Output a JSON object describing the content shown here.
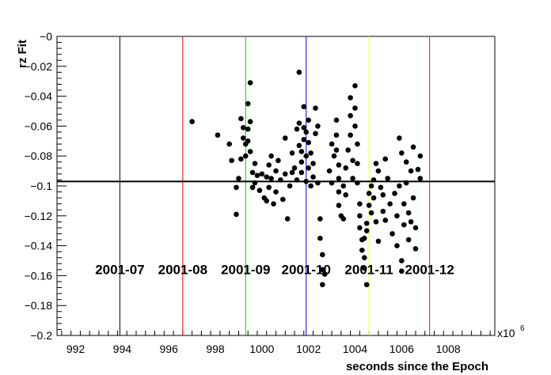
{
  "chart_data": {
    "type": "scatter",
    "xlabel": "seconds since the Epoch",
    "ylabel": "rz Fit",
    "x_multiplier_label": "x10",
    "x_multiplier_exponent": "6",
    "xlim": [
      991.2,
      1010.0
    ],
    "ylim": [
      -0.2,
      0.0
    ],
    "x_ticks": [
      992,
      994,
      996,
      998,
      1000,
      1002,
      1004,
      1006,
      1008
    ],
    "y_ticks": [
      0,
      -0.02,
      -0.04,
      -0.06,
      -0.08,
      -0.1,
      -0.12,
      -0.14,
      -0.16,
      -0.18,
      -0.2
    ],
    "x_tick_labels": [
      "992",
      "994",
      "996",
      "998",
      "1000",
      "1002",
      "1004",
      "1006",
      "1008"
    ],
    "y_tick_labels": [
      "−0",
      "−0.02",
      "−0.04",
      "−0.06",
      "−0.08",
      "−0.1",
      "−0.12",
      "−0.14",
      "−0.16",
      "−0.18",
      "−0.2"
    ],
    "reference_line": {
      "y": -0.097,
      "color": "#000000"
    },
    "month_markers": [
      {
        "x": 993.9,
        "label": "2001-07",
        "color": "#000000"
      },
      {
        "x": 996.6,
        "label": "2001-08",
        "color": "#ff0000"
      },
      {
        "x": 999.3,
        "label": "2001-09",
        "color": "#00cc00"
      },
      {
        "x": 1001.9,
        "label": "2001-10",
        "color": "#0000ff"
      },
      {
        "x": 1004.6,
        "label": "2001-11",
        "color": "#ffff00"
      },
      {
        "x": 1007.2,
        "label": "2001-12",
        "color": "#cc00cc"
      }
    ],
    "points": [
      [
        997.0,
        -0.057
      ],
      [
        998.1,
        -0.066
      ],
      [
        998.6,
        -0.072
      ],
      [
        998.7,
        -0.083
      ],
      [
        998.9,
        -0.101
      ],
      [
        998.9,
        -0.119
      ],
      [
        999.0,
        -0.095
      ],
      [
        999.1,
        -0.082
      ],
      [
        999.1,
        -0.055
      ],
      [
        999.2,
        -0.061
      ],
      [
        999.2,
        -0.068
      ],
      [
        999.3,
        -0.072
      ],
      [
        999.3,
        -0.08
      ],
      [
        999.4,
        -0.045
      ],
      [
        999.4,
        -0.062
      ],
      [
        999.4,
        -0.07
      ],
      [
        999.5,
        -0.031
      ],
      [
        999.5,
        -0.057
      ],
      [
        999.5,
        -0.077
      ],
      [
        999.6,
        -0.091
      ],
      [
        999.6,
        -0.101
      ],
      [
        999.7,
        -0.085
      ],
      [
        999.7,
        -0.098
      ],
      [
        999.8,
        -0.093
      ],
      [
        999.9,
        -0.103
      ],
      [
        1000.0,
        -0.092
      ],
      [
        1000.1,
        -0.108
      ],
      [
        1000.2,
        -0.094
      ],
      [
        1000.2,
        -0.11
      ],
      [
        1000.3,
        -0.086
      ],
      [
        1000.3,
        -0.101
      ],
      [
        1000.4,
        -0.08
      ],
      [
        1000.4,
        -0.095
      ],
      [
        1000.5,
        -0.112
      ],
      [
        1000.6,
        -0.09
      ],
      [
        1000.6,
        -0.104
      ],
      [
        1000.7,
        -0.083
      ],
      [
        1000.8,
        -0.096
      ],
      [
        1000.9,
        -0.109
      ],
      [
        1001.0,
        -0.068
      ],
      [
        1001.0,
        -0.092
      ],
      [
        1001.1,
        -0.122
      ],
      [
        1001.2,
        -0.1
      ],
      [
        1001.3,
        -0.078
      ],
      [
        1001.3,
        -0.091
      ],
      [
        1001.4,
        -0.088
      ],
      [
        1001.5,
        -0.096
      ],
      [
        1001.5,
        -0.062
      ],
      [
        1001.6,
        -0.024
      ],
      [
        1001.6,
        -0.058
      ],
      [
        1001.6,
        -0.073
      ],
      [
        1001.7,
        -0.077
      ],
      [
        1001.7,
        -0.084
      ],
      [
        1001.7,
        -0.091
      ],
      [
        1001.8,
        -0.047
      ],
      [
        1001.8,
        -0.061
      ],
      [
        1001.8,
        -0.069
      ],
      [
        1001.9,
        -0.064
      ],
      [
        1001.9,
        -0.08
      ],
      [
        1001.9,
        -0.097
      ],
      [
        1002.0,
        -0.056
      ],
      [
        1002.0,
        -0.071
      ],
      [
        1002.0,
        -0.088
      ],
      [
        1002.1,
        -0.078
      ],
      [
        1002.1,
        -0.1
      ],
      [
        1002.2,
        -0.085
      ],
      [
        1002.2,
        -0.094
      ],
      [
        1002.3,
        -0.048
      ],
      [
        1002.3,
        -0.065
      ],
      [
        1002.4,
        -0.06
      ],
      [
        1002.4,
        -0.098
      ],
      [
        1002.5,
        -0.122
      ],
      [
        1002.5,
        -0.135
      ],
      [
        1002.6,
        -0.146
      ],
      [
        1002.6,
        -0.156
      ],
      [
        1002.6,
        -0.166
      ],
      [
        1002.7,
        -0.159
      ],
      [
        1002.9,
        -0.09
      ],
      [
        1003.0,
        -0.072
      ],
      [
        1003.0,
        -0.098
      ],
      [
        1003.1,
        -0.08
      ],
      [
        1003.2,
        -0.056
      ],
      [
        1003.2,
        -0.066
      ],
      [
        1003.2,
        -0.076
      ],
      [
        1003.3,
        -0.086
      ],
      [
        1003.3,
        -0.095
      ],
      [
        1003.3,
        -0.104
      ],
      [
        1003.3,
        -0.113
      ],
      [
        1003.4,
        -0.12
      ],
      [
        1003.5,
        -0.1
      ],
      [
        1003.5,
        -0.122
      ],
      [
        1003.6,
        -0.088
      ],
      [
        1003.6,
        -0.106
      ],
      [
        1003.7,
        -0.076
      ],
      [
        1003.8,
        -0.041
      ],
      [
        1003.8,
        -0.053
      ],
      [
        1003.8,
        -0.066
      ],
      [
        1003.9,
        -0.083
      ],
      [
        1003.9,
        -0.095
      ],
      [
        1004.0,
        -0.033
      ],
      [
        1004.0,
        -0.048
      ],
      [
        1004.0,
        -0.06
      ],
      [
        1004.1,
        -0.072
      ],
      [
        1004.1,
        -0.085
      ],
      [
        1004.1,
        -0.098
      ],
      [
        1004.2,
        -0.112
      ],
      [
        1004.2,
        -0.12
      ],
      [
        1004.2,
        -0.128
      ],
      [
        1004.3,
        -0.136
      ],
      [
        1004.3,
        -0.143
      ],
      [
        1004.4,
        -0.148
      ],
      [
        1004.4,
        -0.155
      ],
      [
        1004.4,
        -0.135
      ],
      [
        1004.5,
        -0.125
      ],
      [
        1004.5,
        -0.166
      ],
      [
        1004.5,
        -0.13
      ],
      [
        1004.6,
        -0.105
      ],
      [
        1004.6,
        -0.113
      ],
      [
        1004.7,
        -0.1
      ],
      [
        1004.7,
        -0.118
      ],
      [
        1004.8,
        -0.096
      ],
      [
        1004.8,
        -0.108
      ],
      [
        1004.9,
        -0.085
      ],
      [
        1004.9,
        -0.124
      ],
      [
        1005.0,
        -0.09
      ],
      [
        1005.0,
        -0.137
      ],
      [
        1005.1,
        -0.101
      ],
      [
        1005.2,
        -0.106
      ],
      [
        1005.2,
        -0.117
      ],
      [
        1005.3,
        -0.082
      ],
      [
        1005.3,
        -0.123
      ],
      [
        1005.4,
        -0.095
      ],
      [
        1005.5,
        -0.112
      ],
      [
        1005.6,
        -0.132
      ],
      [
        1005.7,
        -0.105
      ],
      [
        1005.8,
        -0.12
      ],
      [
        1005.8,
        -0.14
      ],
      [
        1005.9,
        -0.068
      ],
      [
        1005.9,
        -0.1
      ],
      [
        1006.0,
        -0.078
      ],
      [
        1006.0,
        -0.15
      ],
      [
        1006.0,
        -0.157
      ],
      [
        1006.1,
        -0.126
      ],
      [
        1006.1,
        -0.112
      ],
      [
        1006.2,
        -0.084
      ],
      [
        1006.2,
        -0.098
      ],
      [
        1006.3,
        -0.118
      ],
      [
        1006.3,
        -0.136
      ],
      [
        1006.4,
        -0.09
      ],
      [
        1006.4,
        -0.124
      ],
      [
        1006.5,
        -0.074
      ],
      [
        1006.5,
        -0.108
      ],
      [
        1006.6,
        -0.128
      ],
      [
        1006.6,
        -0.142
      ],
      [
        1006.7,
        -0.089
      ],
      [
        1006.8,
        -0.095
      ],
      [
        1006.8,
        -0.08
      ]
    ]
  }
}
